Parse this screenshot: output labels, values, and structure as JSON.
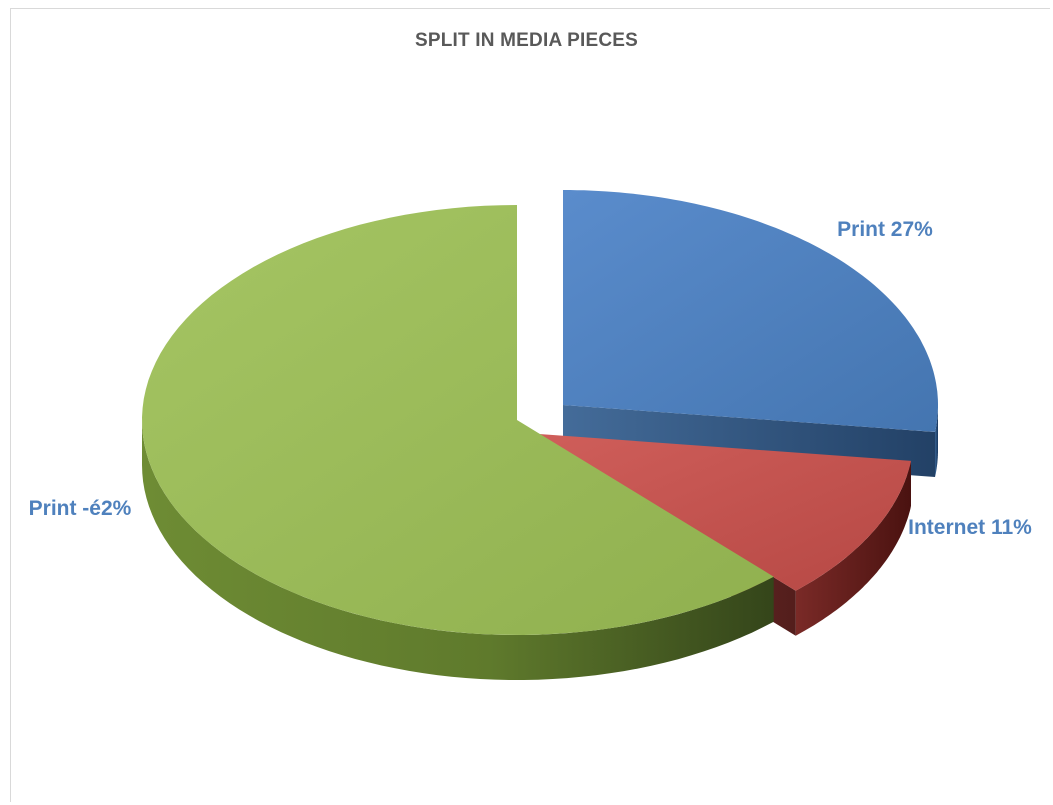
{
  "chart_data": {
    "type": "pie",
    "title": "SPLIT IN MEDIA PIECES",
    "labels": [
      "Print 27%",
      "Internet 11%",
      "Print -é2%"
    ],
    "values": [
      27,
      11,
      62
    ],
    "colors": [
      "#4f81bd",
      "#c0504d",
      "#9bbb59"
    ],
    "style": "3d-exploded",
    "legend": "none"
  }
}
